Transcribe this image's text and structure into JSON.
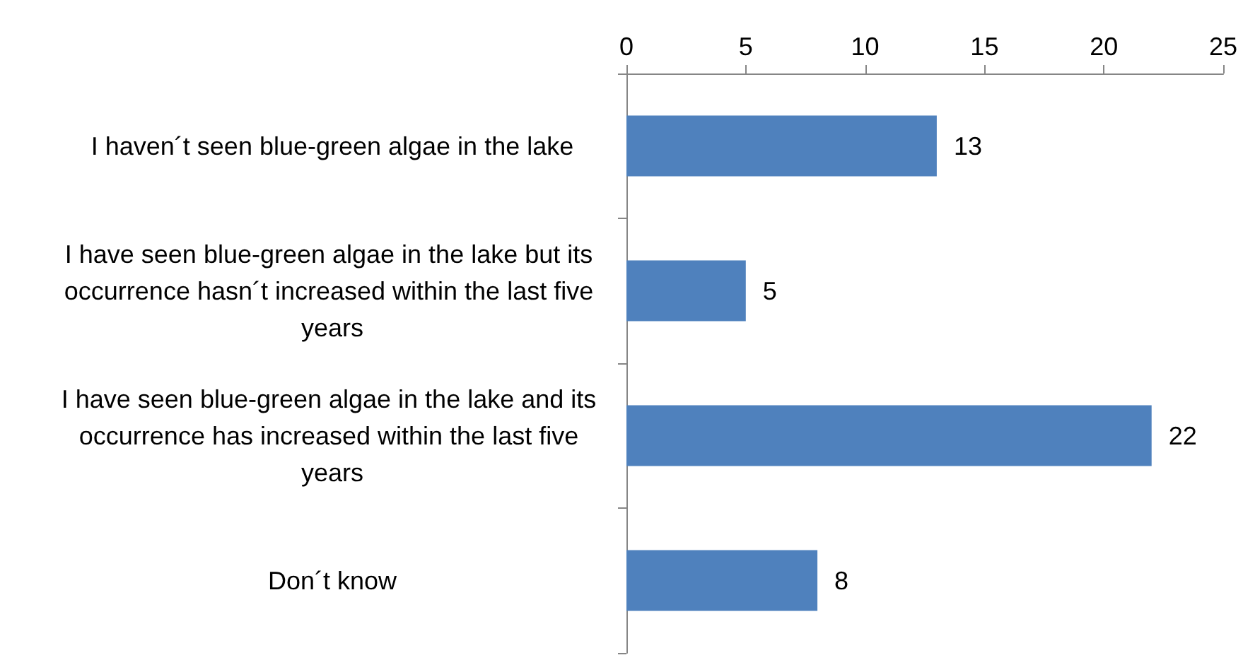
{
  "chart_data": {
    "type": "bar",
    "orientation": "horizontal",
    "categories": [
      "I haven´t seen blue-green algae in the lake",
      "I have seen blue-green algae in the lake but its occurrence hasn´t increased within the last five years",
      "I have seen blue-green algae in the lake and its occurrence has increased within the last five years",
      "Don´t know"
    ],
    "values": [
      13,
      5,
      22,
      8
    ],
    "color": "#4f81bd",
    "xlim": [
      0,
      25
    ],
    "xticks": [
      0,
      5,
      10,
      15,
      20,
      25
    ],
    "grid": false,
    "data_labels": true
  }
}
